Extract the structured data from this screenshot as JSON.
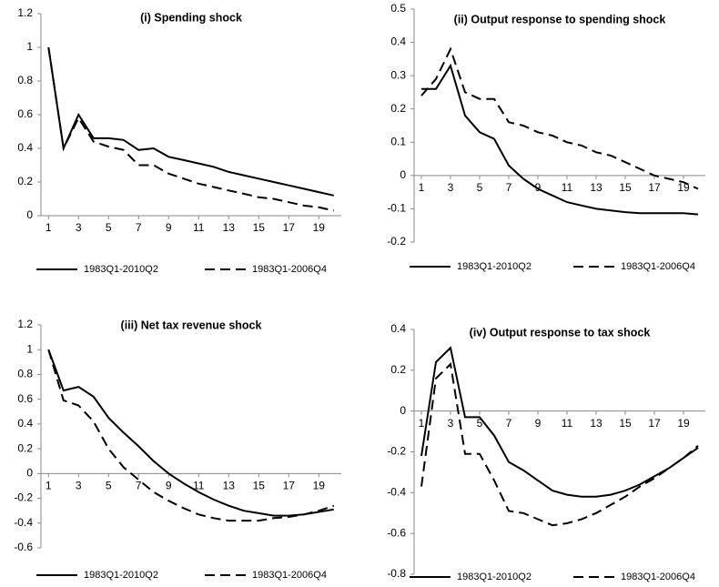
{
  "chart_data": [
    {
      "type": "line",
      "title": "(i) Spending shock",
      "x": [
        1,
        2,
        3,
        4,
        5,
        6,
        7,
        8,
        9,
        10,
        11,
        12,
        13,
        14,
        15,
        16,
        17,
        18,
        19,
        20
      ],
      "xlim": [
        0.5,
        20.5
      ],
      "xticks": [
        1,
        3,
        5,
        7,
        9,
        11,
        13,
        15,
        17,
        19
      ],
      "ylim": [
        0,
        1.2
      ],
      "yticks": [
        0,
        0.2,
        0.4,
        0.6,
        0.8,
        1,
        1.2
      ],
      "series": [
        {
          "name": "1983Q1-2010Q2",
          "color": "#000000",
          "style": "solid",
          "values": [
            1,
            0.4,
            0.6,
            0.46,
            0.46,
            0.45,
            0.39,
            0.4,
            0.35,
            0.33,
            0.31,
            0.29,
            0.26,
            0.24,
            0.22,
            0.2,
            0.18,
            0.16,
            0.14,
            0.12
          ]
        },
        {
          "name": "1983Q1-2006Q4",
          "color": "#000000",
          "style": "dashed",
          "values": [
            1,
            0.4,
            0.58,
            0.44,
            0.41,
            0.39,
            0.3,
            0.3,
            0.25,
            0.22,
            0.19,
            0.17,
            0.15,
            0.13,
            0.11,
            0.1,
            0.08,
            0.06,
            0.05,
            0.03
          ]
        }
      ]
    },
    {
      "type": "line",
      "title": "(ii) Output response to spending shock",
      "x": [
        1,
        2,
        3,
        4,
        5,
        6,
        7,
        8,
        9,
        10,
        11,
        12,
        13,
        14,
        15,
        16,
        17,
        18,
        19,
        20
      ],
      "xlim": [
        0.5,
        20.5
      ],
      "xticks": [
        1,
        3,
        5,
        7,
        9,
        11,
        13,
        15,
        17,
        19
      ],
      "ylim": [
        -0.2,
        0.5
      ],
      "yticks": [
        -0.2,
        -0.1,
        0,
        0.1,
        0.2,
        0.3,
        0.4,
        0.5
      ],
      "series": [
        {
          "name": "1983Q1-2010Q2",
          "color": "#000000",
          "style": "solid",
          "values": [
            0.26,
            0.26,
            0.33,
            0.18,
            0.13,
            0.11,
            0.03,
            -0.01,
            -0.04,
            -0.06,
            -0.08,
            -0.09,
            -0.1,
            -0.105,
            -0.11,
            -0.113,
            -0.113,
            -0.113,
            -0.113,
            -0.117
          ]
        },
        {
          "name": "1983Q1-2006Q4",
          "color": "#000000",
          "style": "dashed",
          "values": [
            0.24,
            0.29,
            0.38,
            0.25,
            0.23,
            0.23,
            0.16,
            0.15,
            0.13,
            0.12,
            0.1,
            0.09,
            0.07,
            0.06,
            0.04,
            0.02,
            0,
            -0.01,
            -0.02,
            -0.04
          ]
        }
      ]
    },
    {
      "type": "line",
      "title": "(iii) Net tax revenue shock",
      "x": [
        1,
        2,
        3,
        4,
        5,
        6,
        7,
        8,
        9,
        10,
        11,
        12,
        13,
        14,
        15,
        16,
        17,
        18,
        19,
        20
      ],
      "xlim": [
        0.5,
        20.5
      ],
      "xticks": [
        1,
        3,
        5,
        7,
        9,
        11,
        13,
        15,
        17,
        19
      ],
      "ylim": [
        -0.6,
        1.2
      ],
      "yticks": [
        -0.6,
        -0.4,
        -0.2,
        0,
        0.2,
        0.4,
        0.6,
        0.8,
        1,
        1.2
      ],
      "series": [
        {
          "name": "1983Q1-2010Q2",
          "color": "#000000",
          "style": "solid",
          "values": [
            1,
            0.67,
            0.7,
            0.62,
            0.45,
            0.33,
            0.22,
            0.1,
            0,
            -0.08,
            -0.15,
            -0.21,
            -0.26,
            -0.3,
            -0.32,
            -0.34,
            -0.34,
            -0.33,
            -0.31,
            -0.29
          ]
        },
        {
          "name": "1983Q1-2006Q4",
          "color": "#000000",
          "style": "dashed",
          "values": [
            1,
            0.59,
            0.55,
            0.42,
            0.2,
            0.05,
            -0.05,
            -0.15,
            -0.22,
            -0.28,
            -0.33,
            -0.36,
            -0.38,
            -0.38,
            -0.38,
            -0.36,
            -0.35,
            -0.33,
            -0.3,
            -0.26
          ]
        }
      ]
    },
    {
      "type": "line",
      "title": "(iv) Output response to tax shock",
      "x": [
        1,
        2,
        3,
        4,
        5,
        6,
        7,
        8,
        9,
        10,
        11,
        12,
        13,
        14,
        15,
        16,
        17,
        18,
        19,
        20
      ],
      "xlim": [
        0.5,
        20.5
      ],
      "xticks": [
        1,
        3,
        5,
        7,
        9,
        11,
        13,
        15,
        17,
        19
      ],
      "ylim": [
        -0.8,
        0.4
      ],
      "yticks": [
        -0.8,
        -0.6,
        -0.4,
        -0.2,
        0,
        0.2,
        0.4
      ],
      "series": [
        {
          "name": "1983Q1-2010Q2",
          "color": "#000000",
          "style": "solid",
          "values": [
            -0.22,
            0.24,
            0.31,
            -0.03,
            -0.03,
            -0.12,
            -0.25,
            -0.29,
            -0.34,
            -0.39,
            -0.41,
            -0.42,
            -0.42,
            -0.41,
            -0.39,
            -0.36,
            -0.32,
            -0.28,
            -0.23,
            -0.18
          ]
        },
        {
          "name": "1983Q1-2006Q4",
          "color": "#000000",
          "style": "dashed",
          "values": [
            -0.37,
            0.16,
            0.23,
            -0.21,
            -0.21,
            -0.34,
            -0.49,
            -0.5,
            -0.53,
            -0.56,
            -0.55,
            -0.53,
            -0.5,
            -0.46,
            -0.42,
            -0.37,
            -0.33,
            -0.28,
            -0.23,
            -0.17
          ]
        }
      ]
    }
  ]
}
